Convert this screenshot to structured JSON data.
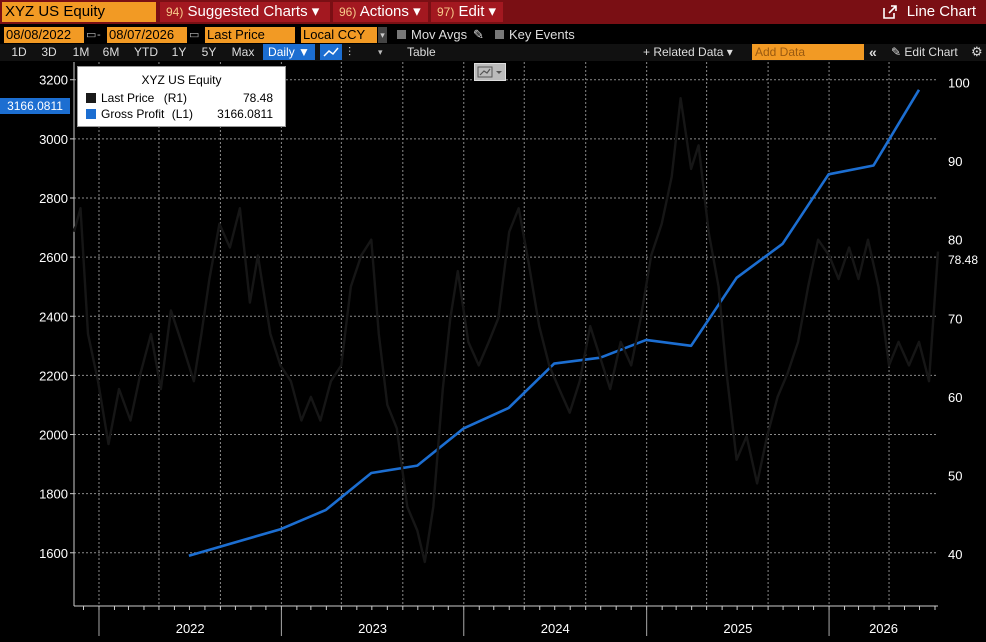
{
  "header": {
    "ticker": "XYZ US Equity",
    "menus": [
      {
        "num": "94)",
        "label": "Suggested Charts",
        "caret": "▾"
      },
      {
        "num": "96)",
        "label": "Actions",
        "caret": "▾"
      },
      {
        "num": "97)",
        "label": "Edit",
        "caret": "▾"
      }
    ],
    "chart_type": "Line Chart"
  },
  "toolbar": {
    "start_date": "08/08/2022",
    "end_date": "08/07/2026",
    "field": "Last Price",
    "currency": "Local CCY",
    "mov_avgs": "Mov Avgs",
    "key_events": "Key Events",
    "ranges": [
      "1D",
      "3D",
      "1M",
      "6M",
      "YTD",
      "1Y",
      "5Y",
      "Max"
    ],
    "frequency": "Daily ▼",
    "table": "Table",
    "related_data": "+ Related Data ▾",
    "add_data_placeholder": "Add Data",
    "collapse": "«",
    "edit_chart": "Edit Chart"
  },
  "legend": {
    "title": "XYZ US Equity",
    "rows": [
      {
        "name": "Last Price",
        "axis": "(R1)",
        "value": "78.48",
        "color": "#1a1a1a"
      },
      {
        "name": "Gross Profit",
        "axis": "(L1)",
        "value": "3166.0811",
        "color": "#1c6ed1"
      }
    ]
  },
  "axis_labels": {
    "left_current": "3166.0811",
    "right_current": "78.48"
  },
  "chart_data": {
    "type": "line",
    "x_range": [
      "2021-11-12",
      "2026-08-07"
    ],
    "x_tick_labels": [
      "2022",
      "2023",
      "2024",
      "2025",
      "2026"
    ],
    "y_left": {
      "range": [
        1420,
        3260
      ],
      "ticks": [
        1600,
        1800,
        2000,
        2200,
        2400,
        2600,
        2800,
        3000,
        3200
      ]
    },
    "y_right": {
      "range": [
        33.4,
        102.6
      ],
      "ticks": [
        40,
        50,
        60,
        70,
        80,
        90,
        100
      ]
    },
    "grid": true,
    "series": [
      {
        "name": "Gross Profit",
        "axis": "left",
        "color": "#1c6ed1",
        "points": [
          [
            "2022-06-30",
            1590
          ],
          [
            "2022-12-31",
            1680
          ],
          [
            "2023-03-31",
            1745
          ],
          [
            "2023-06-30",
            1870
          ],
          [
            "2023-09-30",
            1895
          ],
          [
            "2023-12-31",
            2020
          ],
          [
            "2024-03-31",
            2090
          ],
          [
            "2024-06-30",
            2240
          ],
          [
            "2024-09-30",
            2260
          ],
          [
            "2024-12-31",
            2320
          ],
          [
            "2025-03-31",
            2300
          ],
          [
            "2025-06-30",
            2530
          ],
          [
            "2025-09-30",
            2645
          ],
          [
            "2025-12-31",
            2880
          ],
          [
            "2026-03-31",
            2910
          ],
          [
            "2026-06-30",
            3166.0811
          ]
        ]
      },
      {
        "name": "Last Price",
        "axis": "right",
        "color": "#1a1a1a",
        "points": [
          [
            "2021-11-12",
            81
          ],
          [
            "2021-11-25",
            84
          ],
          [
            "2021-12-10",
            68
          ],
          [
            "2021-12-30",
            62
          ],
          [
            "2022-01-20",
            54
          ],
          [
            "2022-02-10",
            61
          ],
          [
            "2022-03-05",
            57
          ],
          [
            "2022-03-25",
            63
          ],
          [
            "2022-04-15",
            68
          ],
          [
            "2022-05-05",
            61
          ],
          [
            "2022-05-25",
            71
          ],
          [
            "2022-06-20",
            66
          ],
          [
            "2022-07-10",
            62
          ],
          [
            "2022-07-25",
            68
          ],
          [
            "2022-08-10",
            75
          ],
          [
            "2022-08-30",
            82
          ],
          [
            "2022-09-20",
            79
          ],
          [
            "2022-10-10",
            84
          ],
          [
            "2022-10-30",
            72
          ],
          [
            "2022-11-15",
            78
          ],
          [
            "2022-12-10",
            68
          ],
          [
            "2022-12-30",
            64
          ],
          [
            "2023-01-20",
            62
          ],
          [
            "2023-02-10",
            57
          ],
          [
            "2023-03-01",
            60
          ],
          [
            "2023-03-20",
            57
          ],
          [
            "2023-04-10",
            62
          ],
          [
            "2023-05-01",
            64
          ],
          [
            "2023-05-20",
            74
          ],
          [
            "2023-06-10",
            78
          ],
          [
            "2023-06-30",
            80
          ],
          [
            "2023-07-15",
            68
          ],
          [
            "2023-08-01",
            59
          ],
          [
            "2023-08-20",
            56
          ],
          [
            "2023-09-10",
            46
          ],
          [
            "2023-09-30",
            43
          ],
          [
            "2023-10-15",
            39
          ],
          [
            "2023-11-01",
            46
          ],
          [
            "2023-11-20",
            61
          ],
          [
            "2023-12-05",
            70
          ],
          [
            "2023-12-20",
            76
          ],
          [
            "2024-01-10",
            67
          ],
          [
            "2024-01-31",
            64
          ],
          [
            "2024-02-20",
            67
          ],
          [
            "2024-03-10",
            70
          ],
          [
            "2024-04-01",
            81
          ],
          [
            "2024-04-20",
            84
          ],
          [
            "2024-05-10",
            77
          ],
          [
            "2024-05-31",
            69
          ],
          [
            "2024-06-20",
            64
          ],
          [
            "2024-07-10",
            61
          ],
          [
            "2024-07-31",
            58
          ],
          [
            "2024-08-20",
            62
          ],
          [
            "2024-09-10",
            69
          ],
          [
            "2024-09-30",
            65
          ],
          [
            "2024-10-20",
            61
          ],
          [
            "2024-11-10",
            67
          ],
          [
            "2024-12-01",
            64
          ],
          [
            "2024-12-20",
            70
          ],
          [
            "2025-01-10",
            78
          ],
          [
            "2025-01-31",
            82
          ],
          [
            "2025-02-20",
            88
          ],
          [
            "2025-03-10",
            98
          ],
          [
            "2025-03-31",
            89
          ],
          [
            "2025-04-15",
            92
          ],
          [
            "2025-05-05",
            81
          ],
          [
            "2025-05-25",
            74
          ],
          [
            "2025-06-10",
            63
          ],
          [
            "2025-06-30",
            52
          ],
          [
            "2025-07-20",
            55
          ],
          [
            "2025-08-10",
            49
          ],
          [
            "2025-08-30",
            55
          ],
          [
            "2025-09-20",
            60
          ],
          [
            "2025-10-10",
            63
          ],
          [
            "2025-10-31",
            67
          ],
          [
            "2025-11-20",
            74
          ],
          [
            "2025-12-10",
            80
          ],
          [
            "2026-01-01",
            78
          ],
          [
            "2026-01-20",
            75
          ],
          [
            "2026-02-10",
            79
          ],
          [
            "2026-03-01",
            75
          ],
          [
            "2026-03-20",
            80
          ],
          [
            "2026-04-10",
            74
          ],
          [
            "2026-05-01",
            64
          ],
          [
            "2026-05-20",
            67
          ],
          [
            "2026-06-10",
            64
          ],
          [
            "2026-06-30",
            67
          ],
          [
            "2026-07-20",
            62
          ],
          [
            "2026-08-07",
            78.48
          ]
        ]
      }
    ]
  }
}
